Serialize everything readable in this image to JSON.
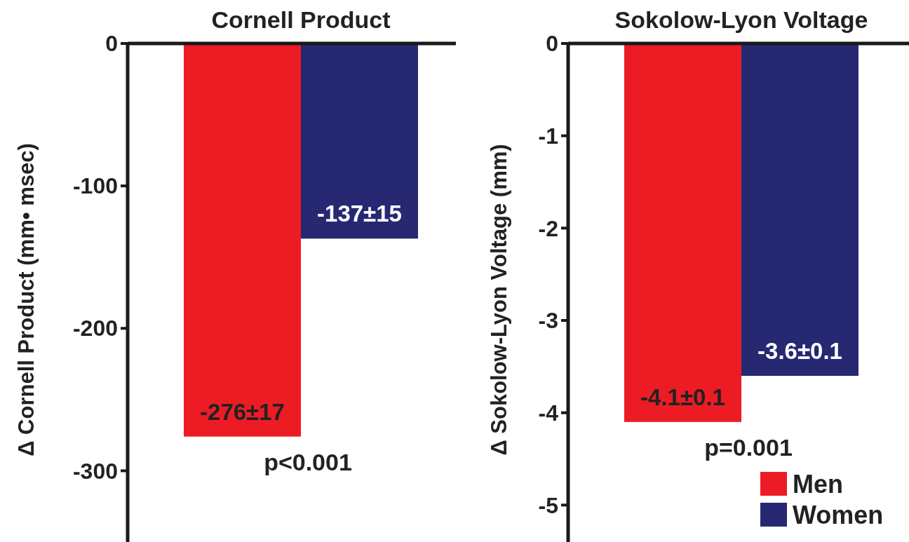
{
  "chart_data": [
    {
      "type": "bar",
      "title": "Cornell Product",
      "ylabel": "Δ Cornell Product (mm• msec)",
      "categories": [
        null
      ],
      "ylim": [
        -350,
        0
      ],
      "yticks": [
        0,
        -100,
        -200,
        -300
      ],
      "legend": false,
      "annotations": [
        "p<0.001"
      ],
      "series": [
        {
          "color": "#ed1c24",
          "values": [
            -276
          ],
          "value_labels": [
            "-276±17"
          ]
        },
        {
          "color": "#262872",
          "values": [
            -137
          ],
          "value_labels": [
            "-137±15"
          ]
        }
      ]
    },
    {
      "type": "bar",
      "title": "Sokolow-Lyon Voltage",
      "ylabel": "Δ Sokolow-Lyon Voltage (mm)",
      "categories": [
        null
      ],
      "ylim": [
        -5.4,
        0
      ],
      "yticks": [
        0,
        -1,
        -2,
        -3,
        -4,
        -5
      ],
      "legend": "bottom right",
      "annotations": [
        "p=0.001"
      ],
      "series": [
        {
          "name": "Men",
          "color": "#ed1c24",
          "values": [
            -4.1
          ],
          "value_labels": [
            "-4.1±0.1"
          ]
        },
        {
          "name": "Women",
          "color": "#262872",
          "values": [
            -3.6
          ],
          "value_labels": [
            "-3.6±0.1"
          ]
        }
      ]
    }
  ]
}
